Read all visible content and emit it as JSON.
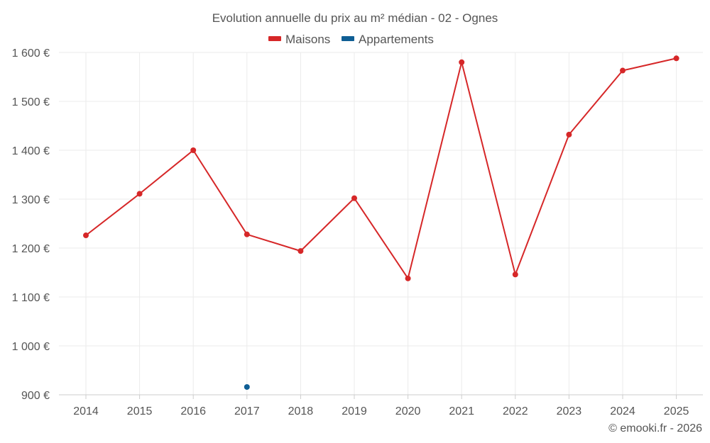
{
  "chart_data": {
    "type": "line",
    "title": "Evolution annuelle du prix au m² médian - 02 - Ognes",
    "x": [
      "2014",
      "2015",
      "2016",
      "2017",
      "2018",
      "2019",
      "2020",
      "2021",
      "2022",
      "2023",
      "2024",
      "2025"
    ],
    "series": [
      {
        "name": "Maisons",
        "color": "#d62728",
        "values": [
          1226,
          1311,
          1400,
          1228,
          1194,
          1302,
          1138,
          1580,
          1146,
          1432,
          1563,
          1588
        ]
      },
      {
        "name": "Appartements",
        "color": "#0f5e94",
        "values": [
          null,
          null,
          null,
          916,
          null,
          null,
          null,
          null,
          null,
          null,
          null,
          null
        ]
      }
    ],
    "ylim": [
      900,
      1600
    ],
    "yticks": [
      900,
      1000,
      1100,
      1200,
      1300,
      1400,
      1500,
      1600
    ],
    "ytick_labels": [
      "900 €",
      "1 000 €",
      "1 100 €",
      "1 200 €",
      "1 300 €",
      "1 400 €",
      "1 500 €",
      "1 600 €"
    ],
    "xlabel": "",
    "ylabel": "",
    "grid": true,
    "legend_position": "top-center",
    "credit": "© emooki.fr - 2026"
  }
}
